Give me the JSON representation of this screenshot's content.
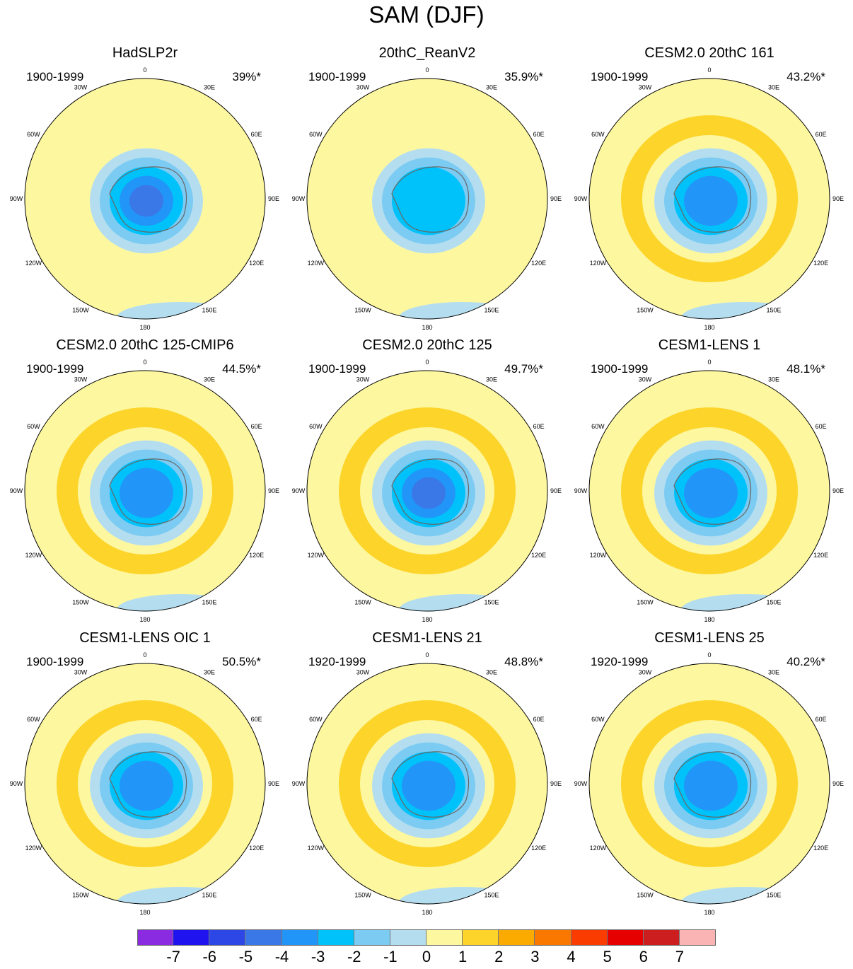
{
  "title": "SAM (DJF)",
  "chart_data": {
    "type": "contour-map-panels",
    "title": "SAM (DJF)",
    "projection": "south polar stereographic",
    "longitude_labels": [
      "0",
      "30E",
      "60E",
      "90E",
      "120E",
      "150E",
      "180",
      "150W",
      "120W",
      "90W",
      "60W",
      "30W"
    ],
    "panels": [
      {
        "name": "HadSLP2r",
        "period": "1900-1999",
        "percent": "39%*",
        "center_min": -5
      },
      {
        "name": "20thC_ReanV2",
        "period": "1900-1999",
        "percent": "35.9%*",
        "center_min": -3
      },
      {
        "name": "CESM2.0 20thC 161",
        "period": "1900-1999",
        "percent": "43.2%*",
        "center_min": -4
      },
      {
        "name": "CESM2.0 20thC 125-CMIP6",
        "period": "1900-1999",
        "percent": "44.5%*",
        "center_min": -4
      },
      {
        "name": "CESM2.0 20thC 125",
        "period": "1900-1999",
        "percent": "49.7%*",
        "center_min": -5
      },
      {
        "name": "CESM1-LENS 1",
        "period": "1900-1999",
        "percent": "48.1%*",
        "center_min": -4
      },
      {
        "name": "CESM1-LENS OIC 1",
        "period": "1900-1999",
        "percent": "50.5%*",
        "center_min": -4
      },
      {
        "name": "CESM1-LENS 21",
        "period": "1920-1999",
        "percent": "48.8%*",
        "center_min": -4
      },
      {
        "name": "CESM1-LENS 25",
        "period": "1920-1999",
        "percent": "40.2%*",
        "center_min": -4
      }
    ],
    "colorbar": {
      "labels": [
        "-7",
        "-6",
        "-5",
        "-4",
        "-3",
        "-2",
        "-1",
        "0",
        "1",
        "2",
        "3",
        "4",
        "5",
        "6",
        "7"
      ],
      "colors": [
        "#8a2be2",
        "#1f14f0",
        "#2d46e6",
        "#3a78e8",
        "#2196f8",
        "#00c2fa",
        "#7ccbf2",
        "#b4def0",
        "#fdf7a0",
        "#fdd42a",
        "#fbaa00",
        "#fb7800",
        "#fa3c00",
        "#e60000",
        "#cc1e1e",
        "#fab4b4"
      ]
    }
  }
}
